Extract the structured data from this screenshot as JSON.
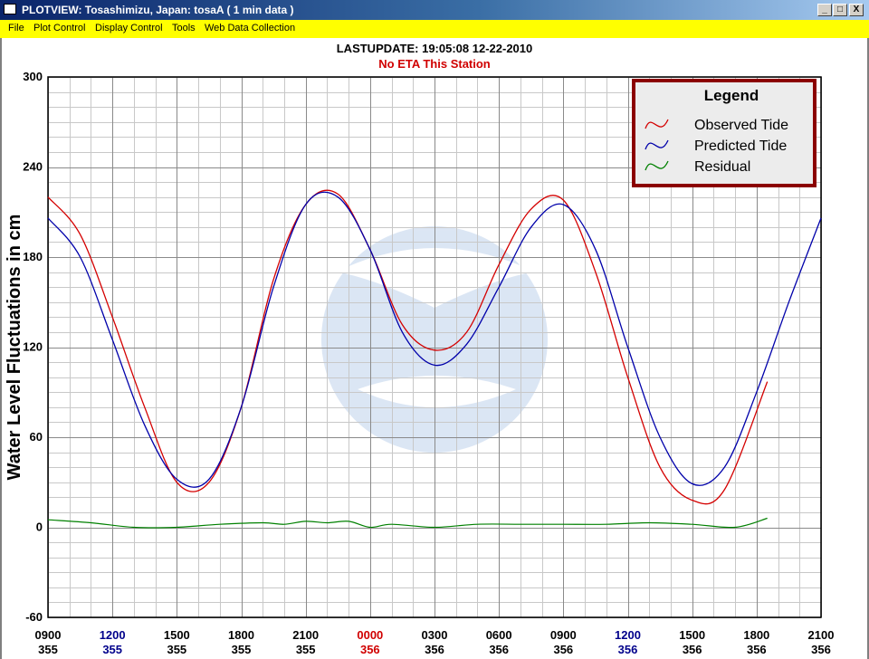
{
  "window": {
    "title": "PLOTVIEW:  Tosashimizu, Japan: tosaA (  1 min data )",
    "minimize": "_",
    "maximize": "□",
    "close": "X"
  },
  "menu": [
    "File",
    "Plot Control",
    "Display Control",
    "Tools",
    "Web Data Collection"
  ],
  "status": {
    "last_update": "LASTUPDATE: 19:05:08  12-22-2010",
    "eta": "No ETA This Station"
  },
  "colors": {
    "observed": "#d40000",
    "predicted": "#0000aa",
    "residual": "#008000",
    "legend_border": "#8b0000",
    "time_blue": "#00008b",
    "time_red": "#d00000"
  },
  "chart_data": {
    "type": "line",
    "title": "",
    "ylabel": "Water Level Fluctuations in cm",
    "ylim": [
      -60,
      300
    ],
    "yticks": [
      300,
      240,
      180,
      120,
      60,
      0,
      -60
    ],
    "xlim": [
      0,
      36
    ],
    "xticks": [
      {
        "time": "0900",
        "day": "355",
        "color": "black"
      },
      {
        "time": "1200",
        "day": "355",
        "color": "blue"
      },
      {
        "time": "1500",
        "day": "355",
        "color": "black"
      },
      {
        "time": "1800",
        "day": "355",
        "color": "black"
      },
      {
        "time": "2100",
        "day": "355",
        "color": "black"
      },
      {
        "time": "0000",
        "day": "356",
        "color": "red"
      },
      {
        "time": "0300",
        "day": "356",
        "color": "black"
      },
      {
        "time": "0600",
        "day": "356",
        "color": "black"
      },
      {
        "time": "0900",
        "day": "356",
        "color": "black"
      },
      {
        "time": "1200",
        "day": "356",
        "color": "blue"
      },
      {
        "time": "1500",
        "day": "356",
        "color": "black"
      },
      {
        "time": "1800",
        "day": "356",
        "color": "black"
      },
      {
        "time": "2100",
        "day": "356",
        "color": "black"
      }
    ],
    "grid": true,
    "legend": {
      "title": "Legend",
      "position": "top-right"
    },
    "series": [
      {
        "name": "Observed Tide",
        "color": "#d40000",
        "x": [
          0,
          1.5,
          3,
          4.5,
          6,
          7.5,
          9,
          10.5,
          12,
          13.5,
          15,
          16.5,
          18,
          19.5,
          21,
          22.5,
          24,
          25.5,
          27,
          28.5,
          30,
          31.5,
          33.5
        ],
        "y": [
          220,
          195,
          140,
          80,
          30,
          30,
          80,
          165,
          215,
          222,
          185,
          135,
          118,
          130,
          175,
          212,
          218,
          170,
          100,
          40,
          18,
          25,
          97
        ]
      },
      {
        "name": "Predicted Tide",
        "color": "#0000aa",
        "x": [
          0,
          1.5,
          3,
          4.5,
          6,
          7.5,
          9,
          10.5,
          12,
          13.5,
          15,
          16.5,
          18,
          19.5,
          21,
          22.5,
          24,
          25.5,
          27,
          28.5,
          30,
          31.5,
          33,
          34.5,
          36
        ],
        "y": [
          206,
          180,
          125,
          68,
          32,
          32,
          80,
          160,
          215,
          220,
          185,
          130,
          108,
          122,
          160,
          200,
          215,
          185,
          120,
          60,
          29,
          40,
          90,
          150,
          206
        ]
      },
      {
        "name": "Residual",
        "color": "#008000",
        "x": [
          0,
          2,
          4,
          6,
          8,
          10,
          11,
          12,
          13,
          14,
          15,
          16,
          18,
          20,
          22,
          24,
          26,
          28,
          30,
          32,
          33.5
        ],
        "y": [
          5,
          3,
          0,
          0,
          2,
          3,
          2,
          4,
          3,
          4,
          0,
          2,
          0,
          2,
          2,
          2,
          2,
          3,
          2,
          0,
          6
        ]
      }
    ]
  }
}
